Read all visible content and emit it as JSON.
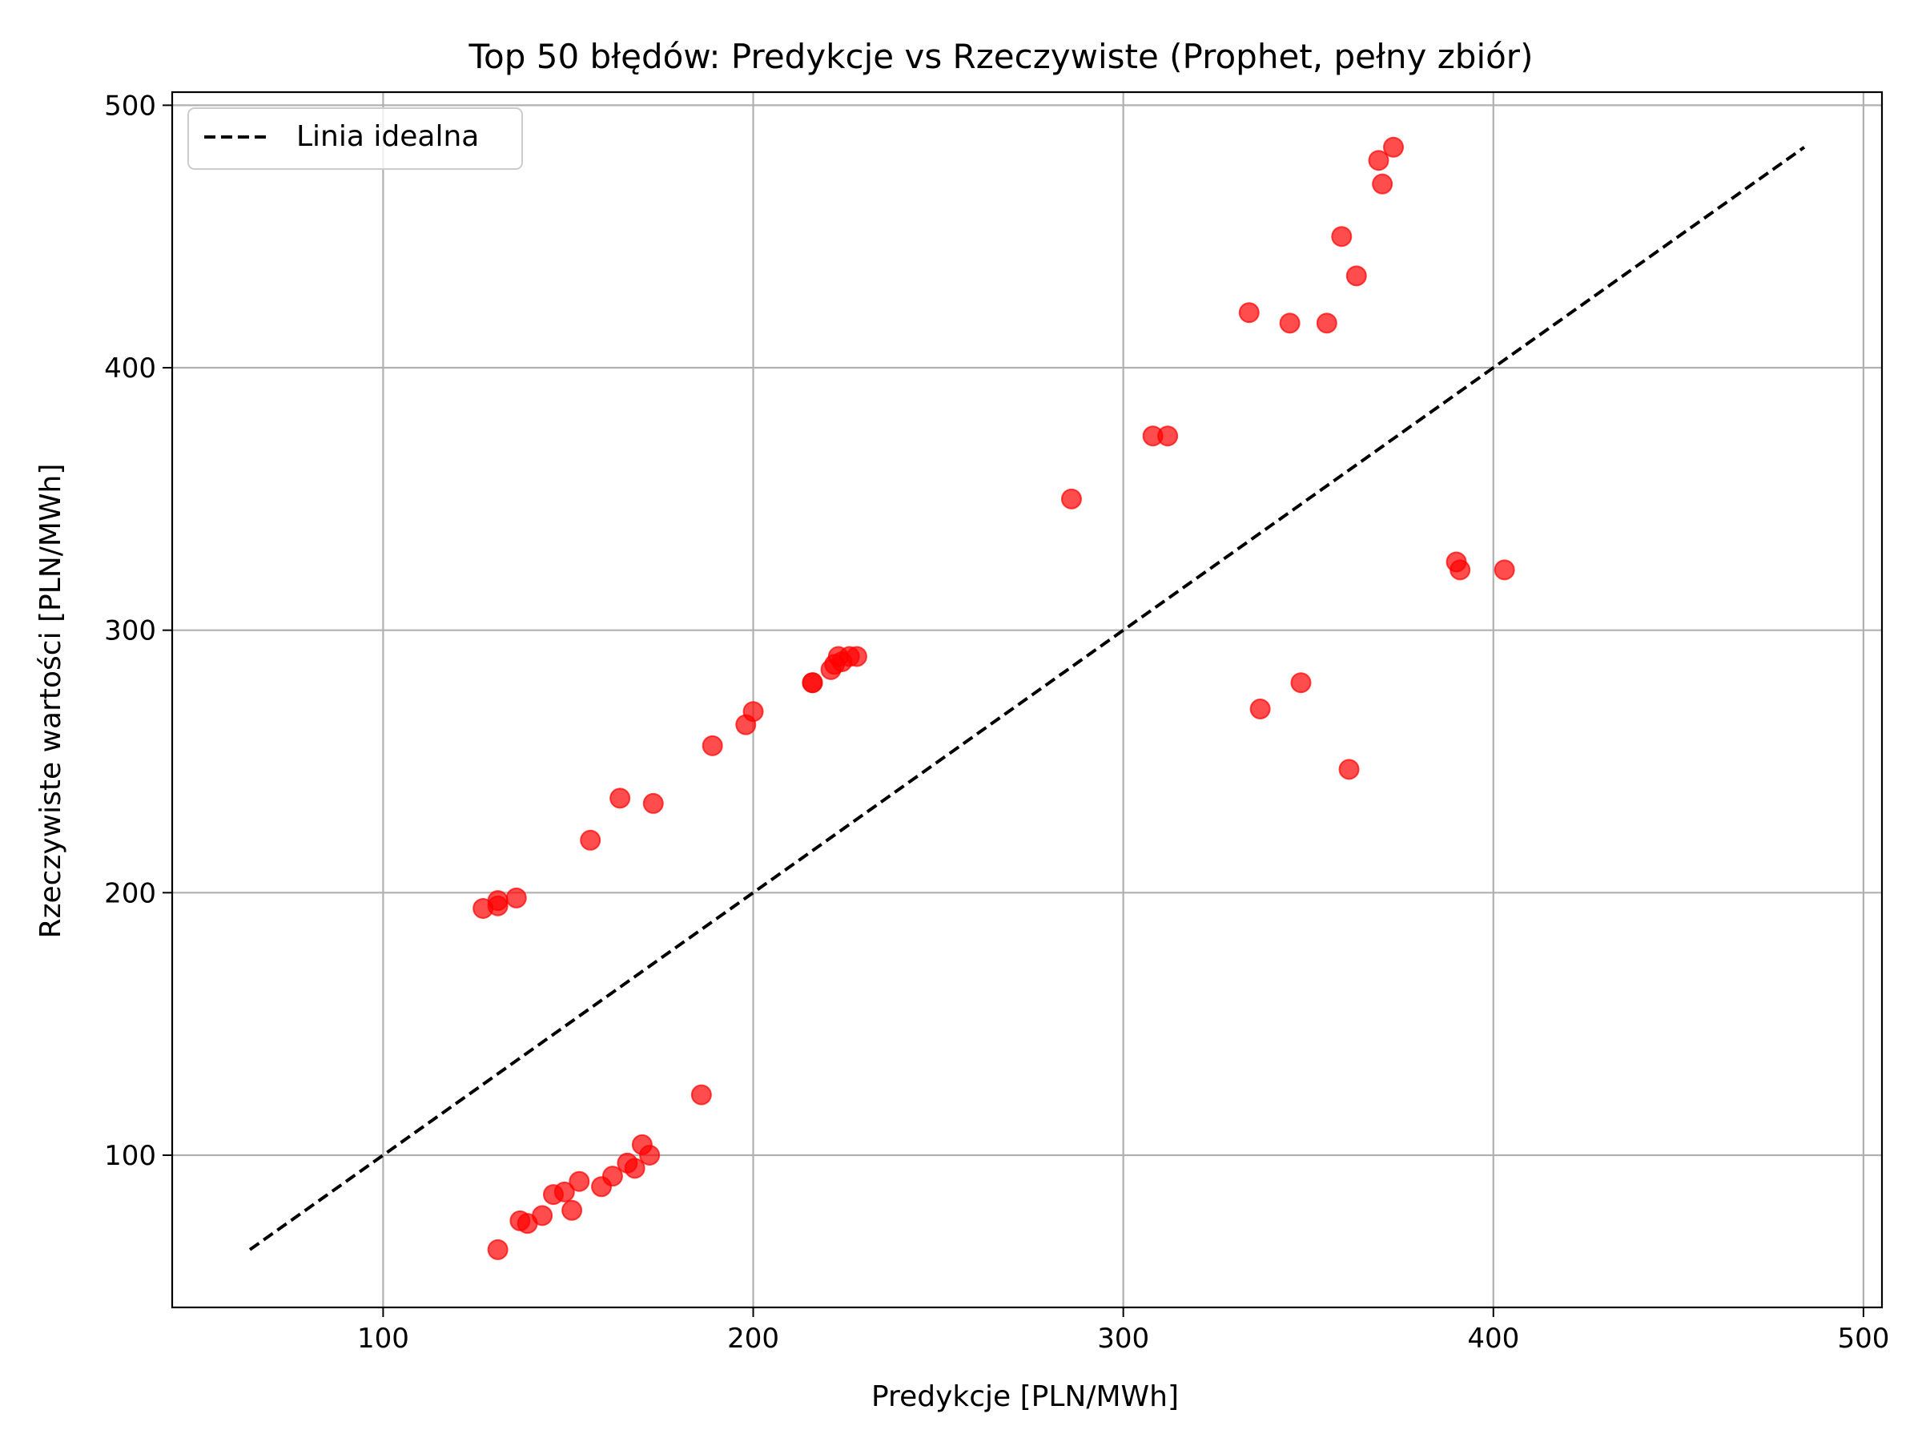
{
  "chart_data": {
    "type": "scatter",
    "title": "Top 50 błędów: Predykcje vs Rzeczywiste (Prophet, pełny zbiór)",
    "xlabel": "Predykcje [PLN/MWh]",
    "ylabel": "Rzeczywiste wartości [PLN/MWh]",
    "xlim": [
      43,
      505
    ],
    "ylim": [
      42,
      505
    ],
    "xticks": [
      100,
      200,
      300,
      400,
      500
    ],
    "yticks": [
      100,
      200,
      300,
      400,
      500
    ],
    "grid": true,
    "legend_position": "top-left",
    "legend": {
      "ideal_label": "Linia idealna"
    },
    "ideal_line": {
      "from": [
        64,
        64
      ],
      "to": [
        484,
        484
      ],
      "style": "dashed",
      "color": "#000000"
    },
    "point_color": "#ff0000",
    "points": [
      [
        373,
        484
      ],
      [
        369,
        479
      ],
      [
        370,
        470
      ],
      [
        359,
        450
      ],
      [
        363,
        435
      ],
      [
        334,
        421
      ],
      [
        345,
        417
      ],
      [
        355,
        417
      ],
      [
        308,
        374
      ],
      [
        312,
        374
      ],
      [
        286,
        350
      ],
      [
        390,
        326
      ],
      [
        391,
        323
      ],
      [
        403,
        323
      ],
      [
        228,
        290
      ],
      [
        223,
        290
      ],
      [
        226,
        290
      ],
      [
        222,
        287
      ],
      [
        221,
        285
      ],
      [
        216,
        280
      ],
      [
        216,
        280
      ],
      [
        348,
        280
      ],
      [
        337,
        270
      ],
      [
        200,
        269
      ],
      [
        198,
        264
      ],
      [
        189,
        256
      ],
      [
        361,
        247
      ],
      [
        164,
        236
      ],
      [
        173,
        234
      ],
      [
        156,
        220
      ],
      [
        136,
        198
      ],
      [
        131,
        197
      ],
      [
        131,
        195
      ],
      [
        127,
        194
      ],
      [
        186,
        123
      ],
      [
        170,
        104
      ],
      [
        172,
        100
      ],
      [
        166,
        97
      ],
      [
        168,
        95
      ],
      [
        162,
        92
      ],
      [
        153,
        90
      ],
      [
        159,
        88
      ],
      [
        149,
        86
      ],
      [
        146,
        85
      ],
      [
        151,
        79
      ],
      [
        143,
        77
      ],
      [
        137,
        75
      ],
      [
        139,
        74
      ],
      [
        131,
        64
      ],
      [
        224,
        288
      ]
    ]
  }
}
